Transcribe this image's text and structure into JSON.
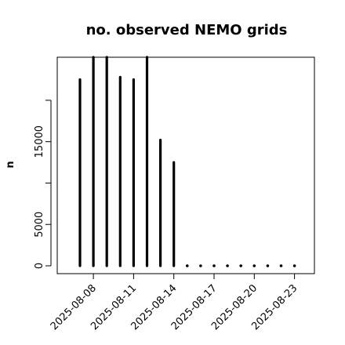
{
  "chart_data": {
    "type": "bar",
    "title": "no. observed NEMO grids",
    "xlabel": "",
    "ylabel": "n",
    "x": [
      "2025-08-07",
      "2025-08-08",
      "2025-08-09",
      "2025-08-10",
      "2025-08-11",
      "2025-08-12",
      "2025-08-13",
      "2025-08-14",
      "2025-08-15",
      "2025-08-16",
      "2025-08-17",
      "2025-08-18",
      "2025-08-19",
      "2025-08-20",
      "2025-08-21",
      "2025-08-22",
      "2025-08-23"
    ],
    "values": [
      22500,
      25200,
      25200,
      22800,
      22500,
      25200,
      15200,
      12500,
      0,
      0,
      0,
      0,
      0,
      0,
      0,
      0,
      0
    ],
    "ylim": [
      0,
      25200
    ],
    "yticks": [
      0,
      5000,
      15000
    ],
    "ytick_labels": [
      "0",
      "5000",
      "15000"
    ],
    "yticks_unlabeled": [
      10000,
      20000
    ],
    "xticks": [
      "2025-08-08",
      "2025-08-11",
      "2025-08-14",
      "2025-08-17",
      "2025-08-20",
      "2025-08-23"
    ],
    "grid": false,
    "color": "#000000"
  }
}
